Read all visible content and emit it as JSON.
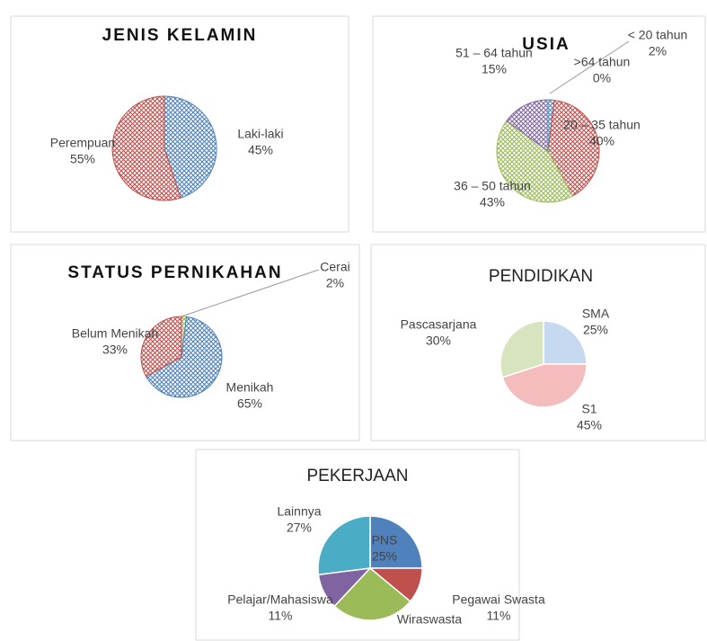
{
  "chart_data": [
    {
      "type": "pie",
      "title": "JENIS KELAMIN",
      "categories": [
        "Laki-laki",
        "Perempuan"
      ],
      "values": [
        45,
        55
      ],
      "value_labels": [
        "45%",
        "55%"
      ],
      "colors": [
        "#4f81bd",
        "#c0504d"
      ],
      "hatched": true
    },
    {
      "type": "pie",
      "title": "USIA",
      "categories": [
        "< 20 tahun",
        "20 – 35 tahun",
        "36 – 50 tahun",
        "51 – 64 tahun",
        ">64 tahun"
      ],
      "values": [
        2,
        40,
        43,
        15,
        0
      ],
      "value_labels": [
        "2%",
        "40%",
        "43%",
        "15%",
        "0%"
      ],
      "colors": [
        "#4f81bd",
        "#c0504d",
        "#9bbb59",
        "#8064a2",
        "#4bacc6"
      ],
      "hatched": true
    },
    {
      "type": "pie",
      "title": "STATUS PERNIKAHAN",
      "categories": [
        "Cerai",
        "Menikah",
        "Belum Menikah"
      ],
      "values": [
        2,
        65,
        33
      ],
      "value_labels": [
        "2%",
        "65%",
        "33%"
      ],
      "colors": [
        "#9bbb59",
        "#4f81bd",
        "#c0504d"
      ],
      "hatched": true
    },
    {
      "type": "pie",
      "title": "PENDIDIKAN",
      "categories": [
        "SMA",
        "S1",
        "Pascasarjana"
      ],
      "values": [
        25,
        45,
        30
      ],
      "value_labels": [
        "25%",
        "45%",
        "30%"
      ],
      "colors": [
        "#c6d9f1",
        "#f4bcbc",
        "#d7e4bd"
      ],
      "hatched": false
    },
    {
      "type": "pie",
      "title": "PEKERJAAN",
      "categories": [
        "PNS",
        "Pegawai Swasta",
        "Wiraswasta",
        "Pelajar/Mahasiswa",
        "Lainnya"
      ],
      "values": [
        25,
        11,
        26,
        11,
        27
      ],
      "value_labels": [
        "25%",
        "11%",
        null,
        "11%",
        "27%"
      ],
      "colors": [
        "#4f81bd",
        "#c0504d",
        "#9bbb59",
        "#8064a2",
        "#4bacc6"
      ],
      "hatched": false
    }
  ]
}
